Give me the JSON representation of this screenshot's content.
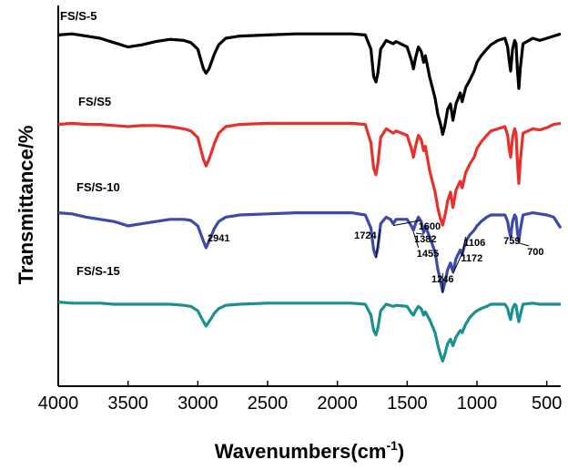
{
  "chart_data": {
    "type": "line",
    "xlabel": "Wavenumbers(cm-1)",
    "xlabel_parts": {
      "base": "Wavenumbers(cm",
      "sup": "-1",
      "close": ")"
    },
    "ylabel": "Transmittance/%",
    "xlim": [
      4000,
      400
    ],
    "x_reversed": true,
    "y_ticks_shown": false,
    "grid": false,
    "x_ticks": [
      4000,
      3500,
      3000,
      2500,
      2000,
      1500,
      1000,
      500
    ],
    "y_unit": "relative transmittance (stacked, arbitrary units)",
    "series": [
      {
        "name": "FS/S-5",
        "color": "#000000",
        "points": [
          [
            4000,
            0.93
          ],
          [
            3900,
            0.94
          ],
          [
            3800,
            0.92
          ],
          [
            3700,
            0.9
          ],
          [
            3600,
            0.86
          ],
          [
            3500,
            0.82
          ],
          [
            3400,
            0.84
          ],
          [
            3300,
            0.87
          ],
          [
            3200,
            0.89
          ],
          [
            3100,
            0.88
          ],
          [
            3050,
            0.86
          ],
          [
            3000,
            0.8
          ],
          [
            2960,
            0.62
          ],
          [
            2941,
            0.58
          ],
          [
            2920,
            0.62
          ],
          [
            2880,
            0.76
          ],
          [
            2850,
            0.84
          ],
          [
            2800,
            0.9
          ],
          [
            2700,
            0.92
          ],
          [
            2500,
            0.93
          ],
          [
            2300,
            0.94
          ],
          [
            2100,
            0.94
          ],
          [
            1900,
            0.94
          ],
          [
            1800,
            0.93
          ],
          [
            1760,
            0.8
          ],
          [
            1740,
            0.55
          ],
          [
            1724,
            0.5
          ],
          [
            1710,
            0.58
          ],
          [
            1690,
            0.8
          ],
          [
            1650,
            0.88
          ],
          [
            1600,
            0.85
          ],
          [
            1580,
            0.87
          ],
          [
            1500,
            0.82
          ],
          [
            1470,
            0.7
          ],
          [
            1455,
            0.62
          ],
          [
            1440,
            0.72
          ],
          [
            1420,
            0.82
          ],
          [
            1400,
            0.78
          ],
          [
            1382,
            0.68
          ],
          [
            1370,
            0.74
          ],
          [
            1340,
            0.55
          ],
          [
            1300,
            0.35
          ],
          [
            1280,
            0.2
          ],
          [
            1262,
            0.12
          ],
          [
            1246,
            0.02
          ],
          [
            1230,
            0.1
          ],
          [
            1210,
            0.25
          ],
          [
            1190,
            0.3
          ],
          [
            1172,
            0.15
          ],
          [
            1150,
            0.3
          ],
          [
            1120,
            0.4
          ],
          [
            1106,
            0.32
          ],
          [
            1080,
            0.45
          ],
          [
            1050,
            0.52
          ],
          [
            1020,
            0.6
          ],
          [
            1000,
            0.68
          ],
          [
            970,
            0.74
          ],
          [
            930,
            0.8
          ],
          [
            900,
            0.84
          ],
          [
            850,
            0.88
          ],
          [
            800,
            0.9
          ],
          [
            780,
            0.82
          ],
          [
            770,
            0.7
          ],
          [
            759,
            0.6
          ],
          [
            745,
            0.8
          ],
          [
            730,
            0.88
          ],
          [
            720,
            0.85
          ],
          [
            710,
            0.6
          ],
          [
            700,
            0.44
          ],
          [
            690,
            0.62
          ],
          [
            670,
            0.85
          ],
          [
            600,
            0.9
          ],
          [
            550,
            0.88
          ],
          [
            500,
            0.9
          ],
          [
            450,
            0.92
          ],
          [
            400,
            0.94
          ]
        ]
      },
      {
        "name": "FS/S5",
        "color": "#e8302a",
        "points": [
          [
            4000,
            0.92
          ],
          [
            3900,
            0.93
          ],
          [
            3800,
            0.92
          ],
          [
            3700,
            0.92
          ],
          [
            3600,
            0.91
          ],
          [
            3500,
            0.9
          ],
          [
            3400,
            0.91
          ],
          [
            3300,
            0.91
          ],
          [
            3200,
            0.9
          ],
          [
            3100,
            0.88
          ],
          [
            3050,
            0.86
          ],
          [
            3000,
            0.8
          ],
          [
            2960,
            0.6
          ],
          [
            2941,
            0.54
          ],
          [
            2920,
            0.6
          ],
          [
            2880,
            0.75
          ],
          [
            2850,
            0.84
          ],
          [
            2800,
            0.9
          ],
          [
            2700,
            0.92
          ],
          [
            2500,
            0.93
          ],
          [
            2300,
            0.93
          ],
          [
            2100,
            0.93
          ],
          [
            1900,
            0.93
          ],
          [
            1800,
            0.92
          ],
          [
            1760,
            0.75
          ],
          [
            1740,
            0.52
          ],
          [
            1724,
            0.46
          ],
          [
            1710,
            0.56
          ],
          [
            1690,
            0.8
          ],
          [
            1650,
            0.88
          ],
          [
            1600,
            0.84
          ],
          [
            1580,
            0.86
          ],
          [
            1500,
            0.82
          ],
          [
            1470,
            0.7
          ],
          [
            1455,
            0.62
          ],
          [
            1440,
            0.72
          ],
          [
            1420,
            0.82
          ],
          [
            1400,
            0.78
          ],
          [
            1382,
            0.68
          ],
          [
            1370,
            0.72
          ],
          [
            1340,
            0.5
          ],
          [
            1300,
            0.3
          ],
          [
            1280,
            0.15
          ],
          [
            1262,
            0.06
          ],
          [
            1246,
            0.0
          ],
          [
            1230,
            0.08
          ],
          [
            1210,
            0.22
          ],
          [
            1190,
            0.3
          ],
          [
            1172,
            0.16
          ],
          [
            1150,
            0.32
          ],
          [
            1120,
            0.4
          ],
          [
            1106,
            0.34
          ],
          [
            1080,
            0.48
          ],
          [
            1050,
            0.56
          ],
          [
            1020,
            0.62
          ],
          [
            1000,
            0.7
          ],
          [
            970,
            0.76
          ],
          [
            930,
            0.82
          ],
          [
            900,
            0.86
          ],
          [
            850,
            0.88
          ],
          [
            800,
            0.9
          ],
          [
            780,
            0.82
          ],
          [
            770,
            0.7
          ],
          [
            759,
            0.62
          ],
          [
            745,
            0.8
          ],
          [
            730,
            0.88
          ],
          [
            720,
            0.84
          ],
          [
            710,
            0.56
          ],
          [
            700,
            0.38
          ],
          [
            690,
            0.58
          ],
          [
            670,
            0.84
          ],
          [
            600,
            0.88
          ],
          [
            550,
            0.87
          ],
          [
            500,
            0.89
          ],
          [
            450,
            0.92
          ],
          [
            400,
            0.93
          ]
        ]
      },
      {
        "name": "FS/S-10",
        "color": "#3d4aa8",
        "points": [
          [
            4000,
            0.92
          ],
          [
            3900,
            0.91
          ],
          [
            3800,
            0.88
          ],
          [
            3700,
            0.86
          ],
          [
            3600,
            0.84
          ],
          [
            3500,
            0.8
          ],
          [
            3400,
            0.82
          ],
          [
            3300,
            0.84
          ],
          [
            3200,
            0.86
          ],
          [
            3100,
            0.86
          ],
          [
            3050,
            0.85
          ],
          [
            3000,
            0.8
          ],
          [
            2960,
            0.66
          ],
          [
            2941,
            0.6
          ],
          [
            2920,
            0.66
          ],
          [
            2880,
            0.78
          ],
          [
            2850,
            0.84
          ],
          [
            2800,
            0.88
          ],
          [
            2700,
            0.9
          ],
          [
            2500,
            0.91
          ],
          [
            2300,
            0.92
          ],
          [
            2100,
            0.92
          ],
          [
            1900,
            0.92
          ],
          [
            1800,
            0.9
          ],
          [
            1760,
            0.78
          ],
          [
            1740,
            0.58
          ],
          [
            1724,
            0.52
          ],
          [
            1710,
            0.6
          ],
          [
            1690,
            0.82
          ],
          [
            1650,
            0.88
          ],
          [
            1620,
            0.86
          ],
          [
            1600,
            0.82
          ],
          [
            1580,
            0.86
          ],
          [
            1500,
            0.86
          ],
          [
            1470,
            0.8
          ],
          [
            1455,
            0.76
          ],
          [
            1440,
            0.82
          ],
          [
            1420,
            0.88
          ],
          [
            1400,
            0.84
          ],
          [
            1382,
            0.74
          ],
          [
            1370,
            0.8
          ],
          [
            1340,
            0.7
          ],
          [
            1300,
            0.56
          ],
          [
            1280,
            0.4
          ],
          [
            1262,
            0.3
          ],
          [
            1246,
            0.2
          ],
          [
            1230,
            0.28
          ],
          [
            1210,
            0.4
          ],
          [
            1190,
            0.46
          ],
          [
            1172,
            0.38
          ],
          [
            1150,
            0.5
          ],
          [
            1120,
            0.58
          ],
          [
            1106,
            0.54
          ],
          [
            1080,
            0.66
          ],
          [
            1050,
            0.72
          ],
          [
            1020,
            0.76
          ],
          [
            1000,
            0.8
          ],
          [
            970,
            0.84
          ],
          [
            930,
            0.88
          ],
          [
            900,
            0.9
          ],
          [
            850,
            0.9
          ],
          [
            800,
            0.9
          ],
          [
            780,
            0.84
          ],
          [
            770,
            0.76
          ],
          [
            759,
            0.7
          ],
          [
            745,
            0.84
          ],
          [
            730,
            0.9
          ],
          [
            720,
            0.88
          ],
          [
            710,
            0.74
          ],
          [
            700,
            0.66
          ],
          [
            690,
            0.76
          ],
          [
            670,
            0.9
          ],
          [
            600,
            0.92
          ],
          [
            550,
            0.91
          ],
          [
            500,
            0.9
          ],
          [
            450,
            0.88
          ],
          [
            400,
            0.78
          ]
        ]
      },
      {
        "name": "FS/S-15",
        "color": "#1b9090",
        "points": [
          [
            4000,
            0.92
          ],
          [
            3900,
            0.91
          ],
          [
            3800,
            0.91
          ],
          [
            3700,
            0.91
          ],
          [
            3600,
            0.9
          ],
          [
            3500,
            0.9
          ],
          [
            3400,
            0.9
          ],
          [
            3300,
            0.9
          ],
          [
            3200,
            0.9
          ],
          [
            3100,
            0.89
          ],
          [
            3050,
            0.88
          ],
          [
            3000,
            0.84
          ],
          [
            2960,
            0.74
          ],
          [
            2941,
            0.7
          ],
          [
            2920,
            0.74
          ],
          [
            2880,
            0.82
          ],
          [
            2850,
            0.86
          ],
          [
            2800,
            0.89
          ],
          [
            2700,
            0.9
          ],
          [
            2500,
            0.91
          ],
          [
            2300,
            0.91
          ],
          [
            2100,
            0.91
          ],
          [
            1900,
            0.91
          ],
          [
            1800,
            0.9
          ],
          [
            1760,
            0.8
          ],
          [
            1740,
            0.66
          ],
          [
            1724,
            0.62
          ],
          [
            1710,
            0.68
          ],
          [
            1690,
            0.84
          ],
          [
            1650,
            0.9
          ],
          [
            1600,
            0.88
          ],
          [
            1580,
            0.89
          ],
          [
            1500,
            0.88
          ],
          [
            1470,
            0.82
          ],
          [
            1455,
            0.8
          ],
          [
            1440,
            0.84
          ],
          [
            1420,
            0.88
          ],
          [
            1400,
            0.86
          ],
          [
            1382,
            0.8
          ],
          [
            1370,
            0.83
          ],
          [
            1340,
            0.76
          ],
          [
            1300,
            0.64
          ],
          [
            1280,
            0.52
          ],
          [
            1262,
            0.44
          ],
          [
            1246,
            0.38
          ],
          [
            1230,
            0.44
          ],
          [
            1210,
            0.54
          ],
          [
            1190,
            0.58
          ],
          [
            1172,
            0.52
          ],
          [
            1150,
            0.6
          ],
          [
            1120,
            0.66
          ],
          [
            1106,
            0.64
          ],
          [
            1080,
            0.72
          ],
          [
            1050,
            0.78
          ],
          [
            1020,
            0.82
          ],
          [
            1000,
            0.84
          ],
          [
            970,
            0.86
          ],
          [
            930,
            0.88
          ],
          [
            900,
            0.9
          ],
          [
            850,
            0.9
          ],
          [
            800,
            0.9
          ],
          [
            780,
            0.86
          ],
          [
            770,
            0.8
          ],
          [
            759,
            0.76
          ],
          [
            745,
            0.86
          ],
          [
            730,
            0.9
          ],
          [
            720,
            0.89
          ],
          [
            710,
            0.8
          ],
          [
            700,
            0.74
          ],
          [
            690,
            0.8
          ],
          [
            670,
            0.9
          ],
          [
            600,
            0.91
          ],
          [
            550,
            0.9
          ],
          [
            500,
            0.9
          ],
          [
            450,
            0.9
          ],
          [
            400,
            0.9
          ]
        ]
      }
    ],
    "annotations": {
      "series": "FS/S-10",
      "peaks": [
        "2941",
        "1724",
        "1600",
        "1455",
        "1382",
        "1246",
        "1172",
        "1106",
        "759",
        "700"
      ]
    }
  }
}
